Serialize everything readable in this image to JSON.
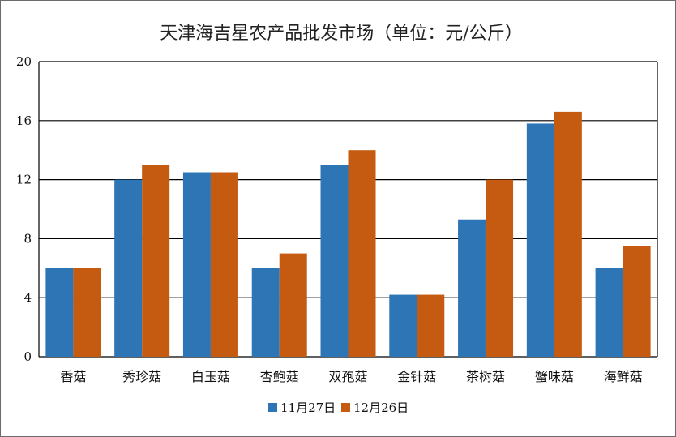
{
  "chart_data": {
    "type": "bar",
    "title": "天津海吉星农产品批发市场（单位：元/公斤）",
    "categories": [
      "香菇",
      "秀珍菇",
      "白玉菇",
      "杏鲍菇",
      "双孢菇",
      "金针菇",
      "茶树菇",
      "蟹味菇",
      "海鲜菇"
    ],
    "series": [
      {
        "name": "11月27日",
        "color": "#2e75b6",
        "values": [
          6,
          12,
          12.5,
          6,
          13,
          4.2,
          9.3,
          15.8,
          6
        ]
      },
      {
        "name": "12月26日",
        "color": "#c55a11",
        "values": [
          6,
          13,
          12.5,
          7,
          14,
          4.2,
          12,
          16.6,
          7.5
        ]
      }
    ],
    "ylim": [
      0,
      20
    ],
    "yticks": [
      "0",
      "4",
      "8",
      "12",
      "16",
      "20"
    ],
    "grid": true,
    "legend_position": "bottom",
    "xlabel": "",
    "ylabel": ""
  }
}
